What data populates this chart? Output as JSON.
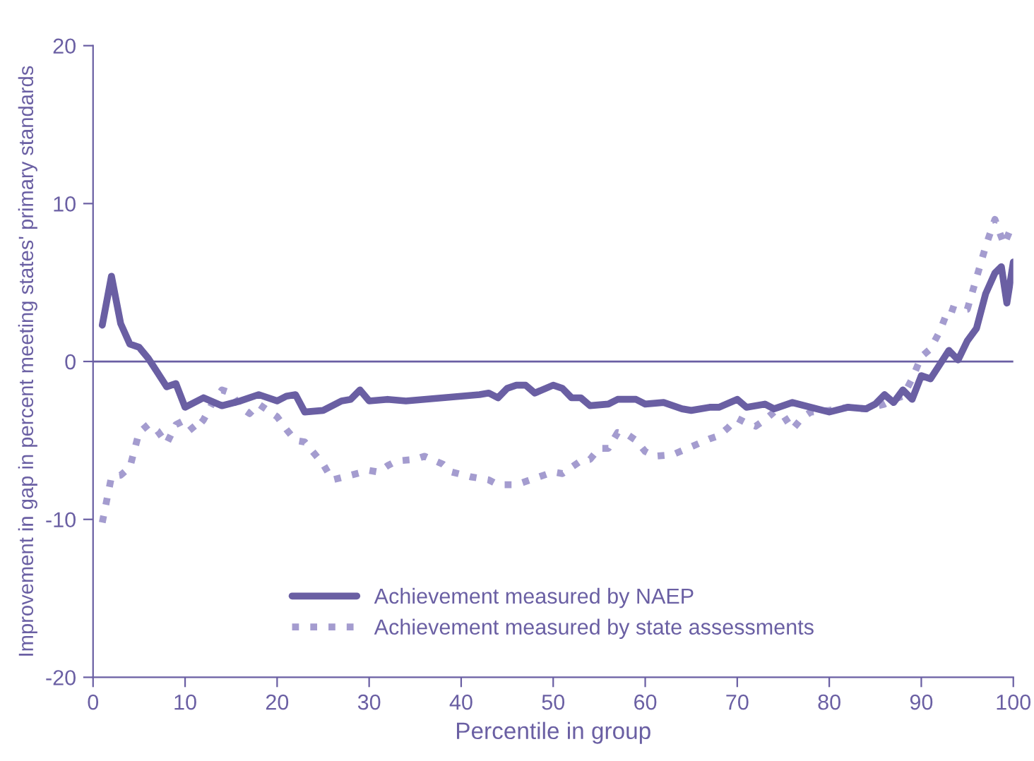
{
  "chart_data": {
    "type": "line",
    "xlabel": "Percentile in group",
    "ylabel": "Improvement in gap in percent meeting states' primary standards",
    "xlim": [
      0,
      100
    ],
    "xticks": [
      0,
      10,
      20,
      30,
      40,
      50,
      60,
      70,
      80,
      90,
      100
    ],
    "ylim": [
      -20,
      20
    ],
    "yticks": [
      -20,
      -10,
      0,
      10,
      20
    ],
    "grid": false,
    "legend": "bottom",
    "ref_lines": [
      {
        "axis": "y",
        "value": 0,
        "color": "#6a5fa3"
      }
    ],
    "series": [
      {
        "name": "Achievement measured by NAEP",
        "color": "#6a5fa3",
        "line_style": "solid",
        "x": [
          1,
          2,
          3,
          4,
          5,
          6,
          7,
          8,
          9,
          10,
          12,
          14,
          16,
          18,
          20,
          21,
          22,
          23,
          25,
          27,
          28,
          29,
          30,
          32,
          34,
          36,
          38,
          40,
          42,
          43,
          44,
          45,
          46,
          47,
          48,
          50,
          51,
          52,
          53,
          54,
          56,
          57,
          59,
          60,
          62,
          64,
          65,
          67,
          68,
          70,
          71,
          73,
          74,
          76,
          78,
          80,
          82,
          84,
          85,
          86,
          87,
          88,
          89,
          90,
          91,
          93,
          94,
          95,
          96,
          97,
          98,
          98.7,
          99.3,
          100
        ],
        "values": [
          2.3,
          5.4,
          2.4,
          1.1,
          0.9,
          0.2,
          -0.7,
          -1.6,
          -1.4,
          -2.9,
          -2.3,
          -2.8,
          -2.5,
          -2.1,
          -2.5,
          -2.2,
          -2.1,
          -3.2,
          -3.1,
          -2.5,
          -2.4,
          -1.8,
          -2.5,
          -2.4,
          -2.5,
          -2.4,
          -2.3,
          -2.2,
          -2.1,
          -2.0,
          -2.3,
          -1.7,
          -1.5,
          -1.5,
          -2.0,
          -1.5,
          -1.7,
          -2.3,
          -2.3,
          -2.8,
          -2.7,
          -2.4,
          -2.4,
          -2.7,
          -2.6,
          -3.0,
          -3.1,
          -2.9,
          -2.9,
          -2.4,
          -2.9,
          -2.7,
          -3.0,
          -2.6,
          -2.9,
          -3.2,
          -2.9,
          -3.0,
          -2.7,
          -2.1,
          -2.6,
          -1.8,
          -2.4,
          -0.9,
          -1.1,
          0.7,
          0.1,
          1.3,
          2.1,
          4.3,
          5.6,
          6.0,
          3.7,
          6.3
        ]
      },
      {
        "name": "Achievement measured by state assessments",
        "color": "#a49ccf",
        "line_style": "dotted",
        "x": [
          1,
          2,
          3,
          4,
          5,
          6,
          7,
          8,
          9,
          10,
          11,
          12,
          13,
          14,
          15,
          16,
          17,
          18,
          19,
          20,
          21,
          22,
          23,
          25,
          26,
          28,
          30,
          31,
          32,
          33,
          35,
          36,
          38,
          39,
          41,
          43,
          44,
          46,
          48,
          50,
          51,
          53,
          54,
          55,
          56,
          57,
          58,
          59,
          60,
          61,
          63,
          65,
          67,
          68,
          69,
          70,
          71,
          72,
          73,
          74,
          75,
          76,
          77,
          78,
          80,
          82,
          84,
          86,
          87,
          88,
          89,
          90,
          91,
          92,
          93,
          94,
          95,
          96,
          97,
          98,
          99,
          100
        ],
        "values": [
          -10.2,
          -7.3,
          -7.2,
          -6.7,
          -4.5,
          -4.0,
          -4.4,
          -5.2,
          -4.0,
          -3.7,
          -4.4,
          -3.7,
          -2.6,
          -1.8,
          -2.0,
          -2.9,
          -3.3,
          -2.7,
          -3.1,
          -3.5,
          -4.3,
          -5.0,
          -5.1,
          -6.5,
          -7.5,
          -7.2,
          -6.9,
          -7.0,
          -6.6,
          -6.3,
          -6.2,
          -6.0,
          -6.5,
          -7.0,
          -7.3,
          -7.5,
          -7.8,
          -7.8,
          -7.4,
          -7.0,
          -7.1,
          -6.3,
          -6.2,
          -5.5,
          -5.5,
          -4.5,
          -4.6,
          -5.0,
          -5.7,
          -6.0,
          -5.9,
          -5.4,
          -4.9,
          -4.7,
          -4.2,
          -3.6,
          -3.9,
          -4.1,
          -3.7,
          -3.2,
          -3.4,
          -4.3,
          -3.6,
          -3.2,
          -3.1,
          -2.9,
          -3.0,
          -2.7,
          -2.4,
          -2.2,
          -1.1,
          0.3,
          0.8,
          1.9,
          3.4,
          3.2,
          3.3,
          5.3,
          7.3,
          9.0,
          7.4,
          8.8
        ]
      }
    ]
  }
}
